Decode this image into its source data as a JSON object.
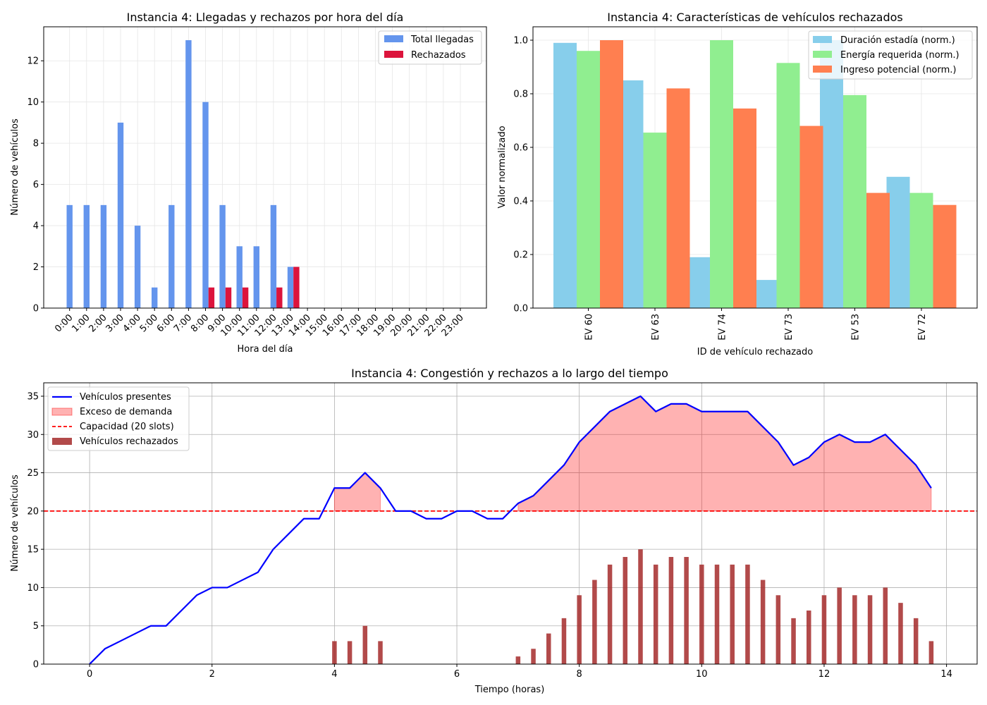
{
  "chart_data": [
    {
      "type": "bar",
      "title": "Instancia 4: Llegadas y rechazos por hora del día",
      "xlabel": "Hora del día",
      "ylabel": "Número de vehículos",
      "ylim": [
        0,
        13.65
      ],
      "yticks": [
        0,
        2,
        4,
        6,
        8,
        10,
        12
      ],
      "grid": true,
      "legend_position": "top-right",
      "categories": [
        "0:00",
        "1:00",
        "2:00",
        "3:00",
        "4:00",
        "5:00",
        "6:00",
        "7:00",
        "8:00",
        "9:00",
        "10:00",
        "11:00",
        "12:00",
        "13:00",
        "14:00",
        "15:00",
        "16:00",
        "17:00",
        "18:00",
        "19:00",
        "20:00",
        "21:00",
        "22:00",
        "23:00"
      ],
      "series": [
        {
          "name": "Total llegadas",
          "color": "#6495ED",
          "values": [
            5,
            5,
            5,
            9,
            4,
            1,
            5,
            13,
            10,
            5,
            3,
            3,
            5,
            2,
            0,
            0,
            0,
            0,
            0,
            0,
            0,
            0,
            0,
            0
          ]
        },
        {
          "name": "Rechazados",
          "color": "#DC143C",
          "values": [
            0,
            0,
            0,
            0,
            0,
            0,
            0,
            0,
            1,
            1,
            1,
            0,
            1,
            2,
            0,
            0,
            0,
            0,
            0,
            0,
            0,
            0,
            0,
            0
          ]
        }
      ]
    },
    {
      "type": "bar",
      "title": "Instancia 4: Características de vehículos rechazados",
      "xlabel": "ID de vehículo rechazado",
      "ylabel": "Valor normalizado",
      "ylim": [
        0,
        1.05
      ],
      "yticks": [
        0.0,
        0.2,
        0.4,
        0.6,
        0.8,
        1.0
      ],
      "grid": true,
      "legend_position": "top-right",
      "categories": [
        "EV 60",
        "EV 63",
        "EV 74",
        "EV 73",
        "EV 53",
        "EV 72"
      ],
      "series": [
        {
          "name": "Duración estadía (norm.)",
          "color": "#87CEEB",
          "values": [
            0.99,
            0.85,
            0.19,
            0.105,
            1.0,
            0.49
          ]
        },
        {
          "name": "Energía requerida (norm.)",
          "color": "#90EE90",
          "values": [
            0.96,
            0.655,
            1.0,
            0.915,
            0.795,
            0.43
          ]
        },
        {
          "name": "Ingreso potencial (norm.)",
          "color": "#FF7F50",
          "values": [
            1.0,
            0.82,
            0.745,
            0.68,
            0.43,
            0.385
          ]
        }
      ]
    },
    {
      "type": "line",
      "title": "Instancia 4: Congestión y rechazos a lo largo del tiempo",
      "xlabel": "Tiempo (horas)",
      "ylabel": "Número de vehículos",
      "xlim": [
        -0.75,
        14.5
      ],
      "ylim": [
        0,
        36.75
      ],
      "xticks": [
        0,
        2,
        4,
        6,
        8,
        10,
        12,
        14
      ],
      "yticks": [
        0,
        5,
        10,
        15,
        20,
        25,
        30,
        35
      ],
      "grid": true,
      "legend_position": "top-left",
      "capacity": 20,
      "legend": {
        "present": "Vehículos presentes",
        "excess": "Exceso de demanda",
        "capacity": "Capacidad (20 slots)",
        "rejected": "Vehículos rechazados"
      },
      "colors": {
        "present": "#0000FF",
        "excess": "#FF0000",
        "capacity": "#FF0000",
        "rejected": "#A52A2A"
      },
      "x": [
        0,
        0.25,
        0.5,
        0.75,
        1,
        1.25,
        1.5,
        1.75,
        2,
        2.25,
        2.5,
        2.75,
        3,
        3.25,
        3.5,
        3.75,
        4,
        4.25,
        4.5,
        4.75,
        5,
        5.25,
        5.5,
        5.75,
        6,
        6.25,
        6.5,
        6.75,
        7,
        7.25,
        7.5,
        7.75,
        8,
        8.25,
        8.5,
        8.75,
        9,
        9.25,
        9.5,
        9.75,
        10,
        10.25,
        10.5,
        10.75,
        11,
        11.25,
        11.5,
        11.75,
        12,
        12.25,
        12.5,
        12.75,
        13,
        13.25,
        13.5,
        13.75
      ],
      "present": [
        0,
        2,
        3,
        4,
        5,
        5,
        7,
        9,
        10,
        10,
        11,
        12,
        15,
        17,
        19,
        19,
        23,
        23,
        25,
        23,
        20,
        20,
        19,
        19,
        20,
        20,
        19,
        19,
        21,
        22,
        24,
        26,
        29,
        31,
        33,
        34,
        35,
        33,
        34,
        34,
        33,
        33,
        33,
        33,
        31,
        29,
        26,
        27,
        29,
        30,
        29,
        29,
        30,
        28,
        26,
        23
      ],
      "rejected": [
        0,
        0,
        0,
        0,
        0,
        0,
        0,
        0,
        0,
        0,
        0,
        0,
        0,
        0,
        0,
        0,
        3,
        3,
        5,
        3,
        0,
        0,
        0,
        0,
        0,
        0,
        0,
        0,
        1,
        2,
        4,
        6,
        9,
        11,
        13,
        14,
        15,
        13,
        14,
        14,
        13,
        13,
        13,
        13,
        11,
        9,
        6,
        7,
        9,
        10,
        9,
        9,
        10,
        8,
        6,
        3
      ]
    }
  ]
}
